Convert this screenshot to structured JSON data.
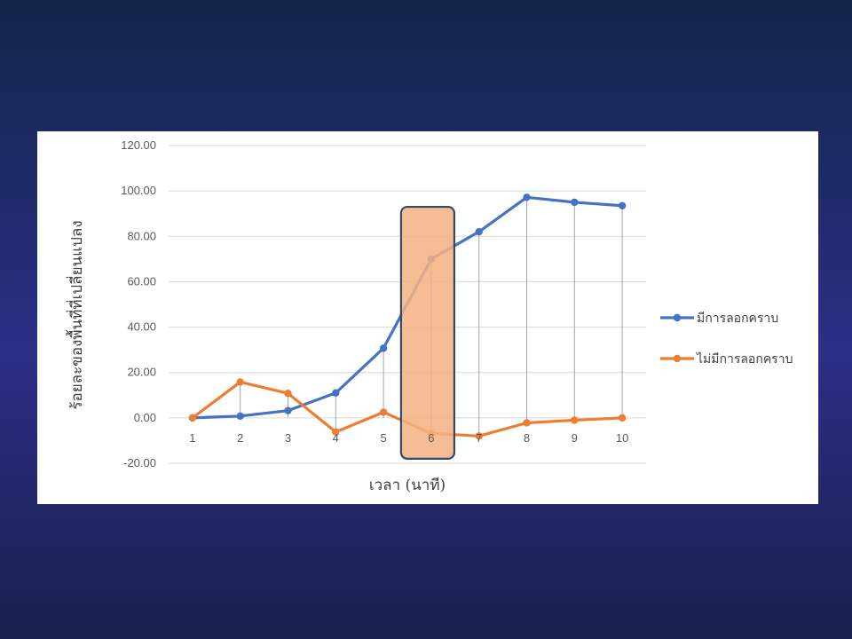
{
  "chart_data": {
    "type": "line",
    "categories": [
      "1",
      "2",
      "3",
      "4",
      "5",
      "6",
      "7",
      "8",
      "9",
      "10"
    ],
    "series": [
      {
        "name": "มีการลอกคราบ",
        "color": "#4472c4",
        "values": [
          0.0,
          0.8,
          3.2,
          11.0,
          30.7,
          70.0,
          82.0,
          97.2,
          95.0,
          93.5
        ]
      },
      {
        "name": "ไม่มีการลอกคราบ",
        "color": "#ed7d31",
        "values": [
          0.0,
          15.8,
          10.8,
          -6.2,
          2.5,
          -6.8,
          -8.0,
          -2.2,
          -1.0,
          0.0
        ]
      }
    ],
    "xlabel": "เวลา (นาที)",
    "ylabel": "ร้อยละของพื้นที่ที่เปลี่ยนแปลง",
    "ylim": [
      -20,
      120
    ],
    "yticks": [
      "-20.00",
      "0.00",
      "20.00",
      "40.00",
      "60.00",
      "80.00",
      "100.00",
      "120.00"
    ],
    "gridlines": true,
    "drop_lines": true,
    "legend_position": "right",
    "highlight_category": "6",
    "highlight_color": "#f4b183",
    "highlight_border_color": "#2f4a6e"
  }
}
